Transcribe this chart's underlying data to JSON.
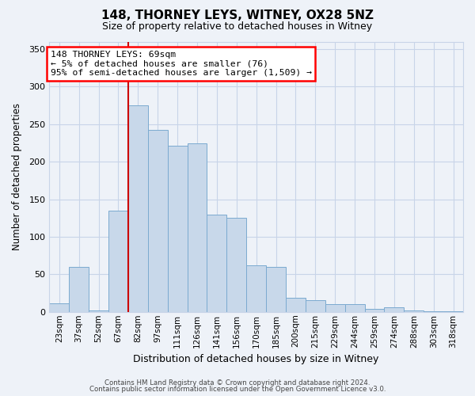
{
  "title": "148, THORNEY LEYS, WITNEY, OX28 5NZ",
  "subtitle": "Size of property relative to detached houses in Witney",
  "xlabel": "Distribution of detached houses by size in Witney",
  "ylabel": "Number of detached properties",
  "bar_labels": [
    "23sqm",
    "37sqm",
    "52sqm",
    "67sqm",
    "82sqm",
    "97sqm",
    "111sqm",
    "126sqm",
    "141sqm",
    "156sqm",
    "170sqm",
    "185sqm",
    "200sqm",
    "215sqm",
    "229sqm",
    "244sqm",
    "259sqm",
    "274sqm",
    "288sqm",
    "303sqm",
    "318sqm"
  ],
  "bar_values": [
    11,
    60,
    2,
    135,
    275,
    242,
    221,
    224,
    130,
    125,
    62,
    60,
    19,
    16,
    10,
    10,
    4,
    6,
    2,
    1,
    1
  ],
  "bar_color": "#c8d8ea",
  "bar_edge_color": "#7baad0",
  "ylim": [
    0,
    360
  ],
  "yticks": [
    0,
    50,
    100,
    150,
    200,
    250,
    300,
    350
  ],
  "annotation_text_line1": "148 THORNEY LEYS: 69sqm",
  "annotation_text_line2": "← 5% of detached houses are smaller (76)",
  "annotation_text_line3": "95% of semi-detached houses are larger (1,509) →",
  "footer_line1": "Contains HM Land Registry data © Crown copyright and database right 2024.",
  "footer_line2": "Contains public sector information licensed under the Open Government Licence v3.0.",
  "bg_color": "#eef2f8",
  "grid_color": "#c8d4e8",
  "red_line_color": "#cc0000"
}
